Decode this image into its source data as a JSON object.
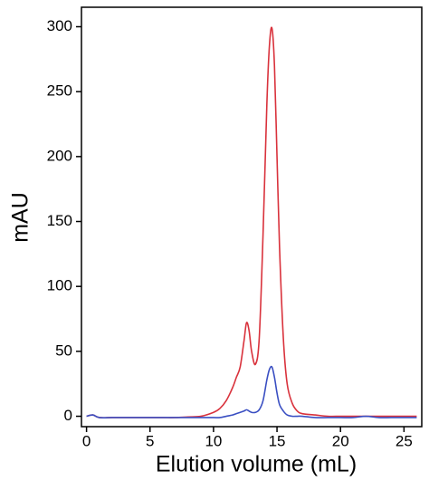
{
  "chart_data": {
    "type": "line",
    "x_label": "Elution volume (mL)",
    "y_label": "mAU",
    "xlim": [
      -0.4,
      26.4
    ],
    "ylim": [
      -8,
      315
    ],
    "xticks": [
      0,
      5,
      10,
      15,
      20,
      25
    ],
    "yticks": [
      0,
      50,
      100,
      150,
      200,
      250,
      300
    ],
    "grid": false,
    "x": [
      0,
      0.5,
      1,
      2,
      3,
      4,
      5,
      6,
      7,
      8,
      9,
      10,
      10.5,
      11,
      11.5,
      11.8,
      12.1,
      12.4,
      12.6,
      12.8,
      13.0,
      13.3,
      13.6,
      13.9,
      14.2,
      14.4,
      14.6,
      14.8,
      15.0,
      15.2,
      15.5,
      15.8,
      16.2,
      16.6,
      17,
      18,
      19,
      20,
      21,
      22,
      23,
      24,
      25,
      26
    ],
    "series": [
      {
        "color": "#d9323c",
        "values": [
          0,
          1,
          -1,
          -1,
          -1,
          -1,
          -1,
          -1,
          -1,
          -0.5,
          0,
          3,
          6,
          12,
          22,
          30,
          38,
          58,
          72,
          66,
          50,
          40,
          60,
          140,
          240,
          285,
          299,
          270,
          200,
          130,
          60,
          25,
          10,
          4,
          2,
          1,
          0,
          0,
          0,
          0,
          0,
          0,
          0,
          0
        ]
      },
      {
        "color": "#3a4fc2",
        "values": [
          0,
          1,
          -1,
          -1,
          -1,
          -1,
          -1,
          -1,
          -1,
          -1,
          -1,
          -1,
          -1,
          0,
          1,
          2,
          3,
          4,
          5,
          4,
          3,
          3,
          5,
          12,
          28,
          36,
          38,
          30,
          18,
          9,
          4,
          1,
          0,
          0,
          0,
          -1,
          -1,
          -1,
          -1,
          0,
          -1,
          -1,
          -1,
          -1
        ]
      }
    ]
  }
}
